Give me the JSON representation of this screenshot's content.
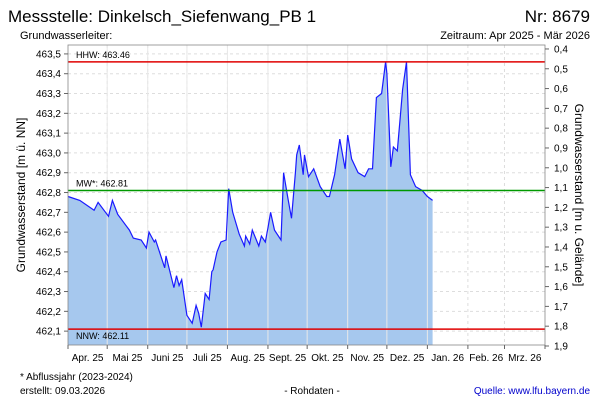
{
  "header": {
    "title": "Messstelle: Dinkelsch_Siefenwang_PB 1",
    "number": "Nr: 8679",
    "aquifer": "Grundwasserleiter:",
    "period": "Zeitraum: Apr 2025 - Mär 2026"
  },
  "footer": {
    "note": "* Abflussjahr (2023-2024)",
    "created": "erstellt:  09.03.2026",
    "raw": "- Rohdaten -",
    "source": "Quelle: www.lfu.bayern.de"
  },
  "colors": {
    "line": "#1a1aff",
    "fill": "#a6c8ee",
    "hhw": "#e00000",
    "mw": "#009900",
    "nnw": "#e00000",
    "source": "#0000cc"
  },
  "chart_data": {
    "type": "area",
    "ylabel": "Grundwasserstand [m ü. NN]",
    "y2label": "Grundwasserstand [m u. Gelände]",
    "ylim": [
      462.03,
      463.545
    ],
    "y2lim": [
      0.38,
      1.895
    ],
    "yticks": [
      "463,5",
      "463,4",
      "463,3",
      "463,2",
      "463,1",
      "463,0",
      "462,9",
      "462,8",
      "462,7",
      "462,6",
      "462,5",
      "462,4",
      "462,3",
      "462,2",
      "462,1"
    ],
    "ytick_values": [
      463.5,
      463.4,
      463.3,
      463.2,
      463.1,
      463.0,
      462.9,
      462.8,
      462.7,
      462.6,
      462.5,
      462.4,
      462.3,
      462.2,
      462.1
    ],
    "y2ticks": [
      "0,4",
      "0,5",
      "0,6",
      "0,7",
      "0,8",
      "0,9",
      "1,0",
      "1,1",
      "1,2",
      "1,3",
      "1,4",
      "1,5",
      "1,6",
      "1,7",
      "1,8",
      "1,9"
    ],
    "y2tick_values": [
      0.4,
      0.5,
      0.6,
      0.7,
      0.8,
      0.9,
      1.0,
      1.1,
      1.2,
      1.3,
      1.4,
      1.5,
      1.6,
      1.7,
      1.8,
      1.9
    ],
    "xunit": "days since 2025-04-01",
    "xlim": [
      0,
      365
    ],
    "months": [
      "Apr. 25",
      "Mai 25",
      "Juni 25",
      "Juli 25",
      "Aug. 25",
      "Sept. 25",
      "Okt. 25",
      "Nov. 25",
      "Dez. 25",
      "Jan. 26",
      "Feb. 26",
      "Mrz. 26"
    ],
    "month_starts": [
      0,
      30,
      61,
      91,
      122,
      153,
      183,
      214,
      244,
      275,
      306,
      334,
      365
    ],
    "reference_lines": [
      {
        "label": "HHW: 463.46",
        "value": 463.46,
        "color": "#e00000"
      },
      {
        "label": "MW*: 462.81",
        "value": 462.81,
        "color": "#009900"
      },
      {
        "label": "NNW: 462.11",
        "value": 462.11,
        "color": "#e00000"
      }
    ],
    "x": [
      0,
      9,
      20,
      23,
      31,
      34,
      38,
      47,
      50,
      56,
      60,
      62,
      66,
      67,
      74,
      75,
      81,
      83,
      85,
      87,
      91,
      95,
      98,
      100,
      102,
      105,
      108,
      110,
      111,
      114,
      117,
      121,
      123,
      126,
      131,
      135,
      136,
      139,
      141,
      146,
      148,
      151,
      153,
      155,
      158,
      163,
      165,
      168,
      171,
      174,
      175,
      177,
      180,
      181,
      184,
      188,
      193,
      198,
      200,
      204,
      208,
      212,
      214,
      217,
      222,
      227,
      230,
      233,
      236,
      240,
      243,
      244,
      247,
      249,
      252,
      254,
      256,
      259,
      262,
      266,
      271,
      275,
      279
    ],
    "y": [
      462.78,
      462.76,
      462.71,
      462.75,
      462.68,
      462.76,
      462.69,
      462.61,
      462.57,
      462.56,
      462.52,
      462.6,
      462.55,
      462.56,
      462.42,
      462.48,
      462.32,
      462.38,
      462.33,
      462.36,
      462.18,
      462.14,
      462.23,
      462.19,
      462.12,
      462.29,
      462.26,
      462.4,
      462.41,
      462.5,
      462.55,
      462.56,
      462.82,
      462.7,
      462.59,
      462.53,
      462.58,
      462.54,
      462.61,
      462.53,
      462.58,
      462.55,
      462.62,
      462.7,
      462.61,
      462.56,
      462.9,
      462.78,
      462.67,
      462.9,
      462.99,
      463.04,
      462.89,
      462.99,
      462.88,
      462.92,
      462.83,
      462.78,
      462.78,
      462.89,
      463.07,
      462.92,
      463.09,
      462.97,
      462.9,
      462.88,
      462.92,
      462.92,
      463.28,
      463.3,
      463.46,
      463.4,
      462.93,
      463.03,
      463.01,
      463.16,
      463.32,
      463.46,
      462.89,
      462.83,
      462.81,
      462.78,
      462.76
    ]
  }
}
